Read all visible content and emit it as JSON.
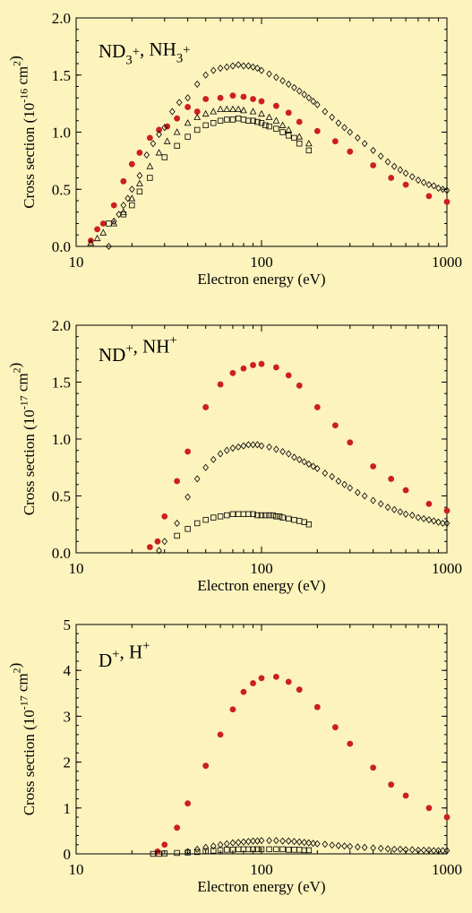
{
  "chart_data": [
    {
      "type": "scatter",
      "panel_label": {
        "parts": [
          [
            "ND",
            ""
          ],
          [
            "3",
            "sub"
          ],
          [
            "+",
            "sup"
          ],
          [
            ", NH",
            ""
          ],
          [
            "3",
            "sub"
          ],
          [
            "+",
            "sup"
          ]
        ]
      },
      "xlabel": "Electron energy (eV)",
      "ylabel": {
        "parts": [
          [
            "Cross section (10",
            ""
          ],
          [
            "-16",
            "sup"
          ],
          [
            " cm",
            ""
          ],
          [
            "2",
            "sup"
          ],
          [
            ")",
            ""
          ]
        ]
      },
      "xscale": "log",
      "xlim": [
        10,
        1000
      ],
      "ylim": [
        0,
        2.0
      ],
      "x_ticks": [
        "10",
        "100",
        "1000"
      ],
      "y_ticks": [
        "0.0",
        "0.5",
        "1.0",
        "1.5",
        "2.0"
      ],
      "series": [
        {
          "marker": "filled-circle",
          "color": "#cc1f1f",
          "x": [
            12,
            13,
            14,
            16,
            18,
            20,
            22,
            25,
            28,
            31,
            35,
            40,
            45,
            50,
            60,
            70,
            80,
            90,
            100,
            120,
            140,
            160,
            200,
            250,
            300,
            400,
            500,
            600,
            800,
            1000
          ],
          "y": [
            0.05,
            0.15,
            0.2,
            0.36,
            0.57,
            0.72,
            0.82,
            0.95,
            1.02,
            1.05,
            1.12,
            1.22,
            1.18,
            1.29,
            1.3,
            1.32,
            1.31,
            1.29,
            1.27,
            1.23,
            1.17,
            1.09,
            1.01,
            0.92,
            0.83,
            0.71,
            0.6,
            0.54,
            0.44,
            0.39
          ]
        },
        {
          "marker": "open-diamond",
          "x": [
            15,
            16,
            17,
            18,
            19,
            20,
            22,
            24,
            26,
            28,
            30,
            33,
            36,
            40,
            45,
            50,
            55,
            60,
            65,
            70,
            75,
            80,
            85,
            90,
            95,
            100,
            110,
            120,
            130,
            140,
            150,
            160,
            170,
            180,
            190,
            200,
            220,
            240,
            260,
            280,
            300,
            330,
            360,
            400,
            440,
            480,
            520,
            560,
            600,
            650,
            700,
            750,
            800,
            850,
            900,
            950,
            1000
          ],
          "y": [
            0.0,
            0.22,
            0.28,
            0.36,
            0.42,
            0.5,
            0.62,
            0.8,
            0.9,
            0.98,
            1.04,
            1.18,
            1.26,
            1.3,
            1.42,
            1.5,
            1.54,
            1.56,
            1.57,
            1.58,
            1.59,
            1.58,
            1.58,
            1.57,
            1.56,
            1.54,
            1.51,
            1.48,
            1.45,
            1.42,
            1.39,
            1.36,
            1.33,
            1.3,
            1.27,
            1.24,
            1.18,
            1.13,
            1.08,
            1.04,
            1.0,
            0.95,
            0.9,
            0.84,
            0.79,
            0.74,
            0.7,
            0.67,
            0.64,
            0.61,
            0.58,
            0.56,
            0.54,
            0.53,
            0.51,
            0.5,
            0.49
          ]
        },
        {
          "marker": "open-triangle",
          "x": [
            12,
            13,
            14,
            16,
            18,
            20,
            22,
            25,
            28,
            31,
            35,
            40,
            45,
            50,
            55,
            60,
            65,
            70,
            75,
            80,
            90,
            100,
            110,
            120,
            130,
            140,
            160,
            180
          ],
          "y": [
            0.03,
            0.07,
            0.12,
            0.2,
            0.3,
            0.42,
            0.55,
            0.7,
            0.82,
            0.92,
            1.0,
            1.08,
            1.13,
            1.16,
            1.18,
            1.2,
            1.2,
            1.2,
            1.2,
            1.19,
            1.18,
            1.16,
            1.13,
            1.1,
            1.06,
            1.02,
            0.96,
            0.9
          ]
        },
        {
          "marker": "open-square",
          "x": [
            15,
            18,
            20,
            22,
            25,
            30,
            35,
            40,
            45,
            50,
            55,
            60,
            65,
            70,
            75,
            80,
            85,
            90,
            95,
            100,
            105,
            110,
            120,
            130,
            140,
            150,
            160,
            180
          ],
          "y": [
            0.2,
            0.28,
            0.36,
            0.48,
            0.6,
            0.78,
            0.88,
            0.96,
            1.02,
            1.06,
            1.08,
            1.1,
            1.11,
            1.11,
            1.12,
            1.11,
            1.1,
            1.1,
            1.09,
            1.08,
            1.06,
            1.05,
            1.03,
            1.0,
            0.97,
            0.95,
            0.9,
            0.84
          ]
        }
      ]
    },
    {
      "type": "scatter",
      "panel_label": {
        "parts": [
          [
            "ND",
            ""
          ],
          [
            "+",
            "sup"
          ],
          [
            ", NH",
            ""
          ],
          [
            "+",
            "sup"
          ]
        ]
      },
      "xlabel": "Electron energy (eV)",
      "ylabel": {
        "parts": [
          [
            "Cross section (10",
            ""
          ],
          [
            "-17",
            "sup"
          ],
          [
            " cm",
            ""
          ],
          [
            "2",
            "sup"
          ],
          [
            ")",
            ""
          ]
        ]
      },
      "xscale": "log",
      "xlim": [
        10,
        1000
      ],
      "ylim": [
        0,
        2.0
      ],
      "x_ticks": [
        "10",
        "100",
        "1000"
      ],
      "y_ticks": [
        "0.0",
        "0.5",
        "1.0",
        "1.5",
        "2.0"
      ],
      "series": [
        {
          "marker": "filled-circle",
          "color": "#cc1f1f",
          "x": [
            25,
            27.5,
            30,
            35,
            40,
            50,
            60,
            70,
            80,
            90,
            100,
            120,
            140,
            160,
            200,
            250,
            300,
            400,
            500,
            600,
            800,
            1000
          ],
          "y": [
            0.05,
            0.1,
            0.32,
            0.63,
            0.89,
            1.28,
            1.48,
            1.58,
            1.62,
            1.65,
            1.66,
            1.63,
            1.56,
            1.47,
            1.28,
            1.12,
            0.97,
            0.76,
            0.65,
            0.55,
            0.43,
            0.37
          ]
        },
        {
          "marker": "open-diamond",
          "x": [
            28,
            30,
            35,
            40,
            45,
            50,
            55,
            60,
            65,
            70,
            75,
            80,
            85,
            90,
            95,
            100,
            110,
            120,
            130,
            140,
            150,
            160,
            170,
            180,
            190,
            200,
            220,
            240,
            260,
            280,
            300,
            330,
            360,
            400,
            440,
            480,
            520,
            560,
            600,
            650,
            700,
            750,
            800,
            850,
            900,
            950,
            1000
          ],
          "y": [
            0.02,
            0.1,
            0.26,
            0.49,
            0.65,
            0.75,
            0.82,
            0.87,
            0.9,
            0.92,
            0.93,
            0.94,
            0.95,
            0.95,
            0.95,
            0.94,
            0.93,
            0.91,
            0.89,
            0.87,
            0.84,
            0.82,
            0.8,
            0.78,
            0.76,
            0.74,
            0.7,
            0.67,
            0.63,
            0.6,
            0.57,
            0.53,
            0.5,
            0.46,
            0.43,
            0.4,
            0.38,
            0.36,
            0.34,
            0.33,
            0.31,
            0.3,
            0.29,
            0.28,
            0.27,
            0.26,
            0.26
          ]
        },
        {
          "marker": "open-square",
          "x": [
            35,
            40,
            45,
            50,
            55,
            60,
            65,
            70,
            75,
            80,
            85,
            90,
            95,
            100,
            105,
            110,
            115,
            120,
            125,
            130,
            140,
            150,
            160,
            170,
            180
          ],
          "y": [
            0.15,
            0.21,
            0.26,
            0.29,
            0.31,
            0.32,
            0.33,
            0.34,
            0.34,
            0.34,
            0.34,
            0.34,
            0.33,
            0.33,
            0.33,
            0.33,
            0.33,
            0.32,
            0.32,
            0.31,
            0.3,
            0.29,
            0.28,
            0.27,
            0.25
          ]
        }
      ]
    },
    {
      "type": "scatter",
      "panel_label": {
        "parts": [
          [
            "D",
            ""
          ],
          [
            "+",
            "sup"
          ],
          [
            ", H",
            ""
          ],
          [
            "+",
            "sup"
          ]
        ]
      },
      "xlabel": "Electron energy (eV)",
      "ylabel": {
        "parts": [
          [
            "Cross section (10",
            ""
          ],
          [
            "-17",
            "sup"
          ],
          [
            " cm",
            ""
          ],
          [
            "2",
            "sup"
          ],
          [
            ")",
            ""
          ]
        ]
      },
      "xscale": "log",
      "xlim": [
        10,
        1000
      ],
      "ylim": [
        0,
        5
      ],
      "x_ticks": [
        "10",
        "100",
        "1000"
      ],
      "y_ticks": [
        "0",
        "1",
        "2",
        "3",
        "4",
        "5"
      ],
      "series": [
        {
          "marker": "filled-circle",
          "color": "#cc1f1f",
          "x": [
            27.5,
            30,
            35,
            40,
            50,
            60,
            70,
            80,
            90,
            100,
            120,
            140,
            160,
            200,
            250,
            300,
            400,
            500,
            600,
            800,
            1000
          ],
          "y": [
            0.05,
            0.2,
            0.57,
            1.1,
            1.92,
            2.6,
            3.15,
            3.53,
            3.72,
            3.83,
            3.86,
            3.75,
            3.58,
            3.2,
            2.76,
            2.4,
            1.88,
            1.51,
            1.27,
            1.0,
            0.8
          ]
        },
        {
          "marker": "open-diamond",
          "x": [
            40,
            45,
            50,
            55,
            60,
            65,
            70,
            75,
            80,
            85,
            90,
            95,
            100,
            110,
            120,
            130,
            140,
            150,
            160,
            170,
            180,
            190,
            200,
            220,
            240,
            260,
            280,
            300,
            330,
            360,
            400,
            440,
            480,
            520,
            560,
            600,
            650,
            700,
            750,
            800,
            850,
            900,
            950,
            1000
          ],
          "y": [
            0.05,
            0.1,
            0.14,
            0.17,
            0.2,
            0.22,
            0.24,
            0.25,
            0.26,
            0.27,
            0.28,
            0.28,
            0.29,
            0.29,
            0.29,
            0.28,
            0.28,
            0.27,
            0.26,
            0.25,
            0.24,
            0.23,
            0.22,
            0.21,
            0.19,
            0.18,
            0.17,
            0.16,
            0.15,
            0.14,
            0.13,
            0.12,
            0.11,
            0.1,
            0.1,
            0.09,
            0.09,
            0.08,
            0.08,
            0.08,
            0.07,
            0.07,
            0.07,
            0.07
          ]
        },
        {
          "marker": "open-square",
          "x": [
            26,
            28,
            30,
            35,
            40,
            45,
            50,
            55,
            60,
            65,
            70,
            75,
            80,
            85,
            90,
            95,
            100,
            110,
            120,
            130,
            140,
            150,
            160,
            170,
            180
          ],
          "y": [
            0.0,
            0.0,
            0.01,
            0.02,
            0.03,
            0.04,
            0.06,
            0.07,
            0.08,
            0.09,
            0.09,
            0.1,
            0.1,
            0.1,
            0.1,
            0.1,
            0.1,
            0.1,
            0.1,
            0.1,
            0.09,
            0.09,
            0.09,
            0.08,
            0.08
          ]
        }
      ]
    }
  ]
}
